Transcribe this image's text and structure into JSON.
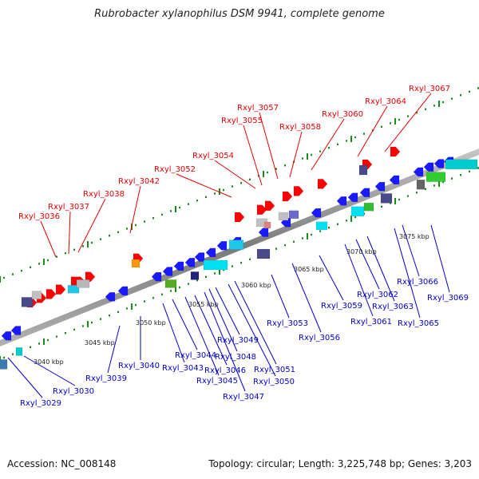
{
  "title": "Rubrobacter xylanophilus DSM 9941, complete genome",
  "footer": {
    "accession": "Accession: NC_008148",
    "topology": "Topology: circular; Length: 3,225,748 bp; Genes: 3,203"
  },
  "scale_labels": [
    "3040 kbp",
    "3045 kbp",
    "3050 kbp",
    "3055 kbp",
    "3060 kbp",
    "3065 kbp",
    "3070 kbp",
    "3075 kbp"
  ],
  "top_genes": [
    "Rxyl_3036",
    "Rxyl_3037",
    "Rxyl_3038",
    "Rxyl_3042",
    "Rxyl_3052",
    "Rxyl_3054",
    "Rxyl_3055",
    "Rxyl_3057",
    "Rxyl_3058",
    "Rxyl_3060",
    "Rxyl_3064",
    "Rxyl_3067"
  ],
  "bottom_genes": [
    "Rxyl_3029",
    "Rxyl_3030",
    "Rxyl_3039",
    "Rxyl_3040",
    "Rxyl_3043",
    "Rxyl_3044",
    "Rxyl_3045",
    "Rxyl_3046",
    "Rxyl_3047",
    "Rxyl_3048",
    "Rxyl_3049",
    "Rxyl_3050",
    "Rxyl_3051",
    "Rxyl_3053",
    "Rxyl_3056",
    "Rxyl_3059",
    "Rxyl_3061",
    "Rxyl_3062",
    "Rxyl_3063",
    "Rxyl_3065",
    "Rxyl_3066",
    "Rxyl_3069"
  ],
  "colors": {
    "top_label": "#e60000",
    "bottom_label": "#0000cc",
    "forward_gene": "#ff0000",
    "reverse_gene": "#1a1aff",
    "backbone": "#8c8c8c",
    "tick_green": "#1a8a1a"
  }
}
